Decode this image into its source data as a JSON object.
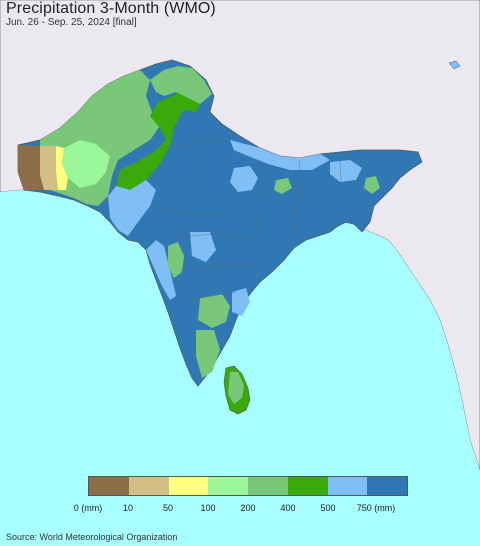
{
  "title": "Precipitation 3-Month (WMO)",
  "subtitle": "Jun. 26 - Sep. 25, 2024 [final]",
  "source": "Source: World Meteorological Organization",
  "legend": {
    "colors": [
      "#8b6d47",
      "#d2bf86",
      "#ffff80",
      "#99f799",
      "#79c879",
      "#3aaa0a",
      "#7fbff5",
      "#2f78b4"
    ],
    "labels": [
      "0 (mm)",
      "10",
      "50",
      "100",
      "200",
      "400",
      "500",
      "750 (mm)"
    ]
  },
  "map_colors": {
    "ocean": "#a8ffff",
    "land_outside": "#ece8ef",
    "border": "#555555"
  }
}
